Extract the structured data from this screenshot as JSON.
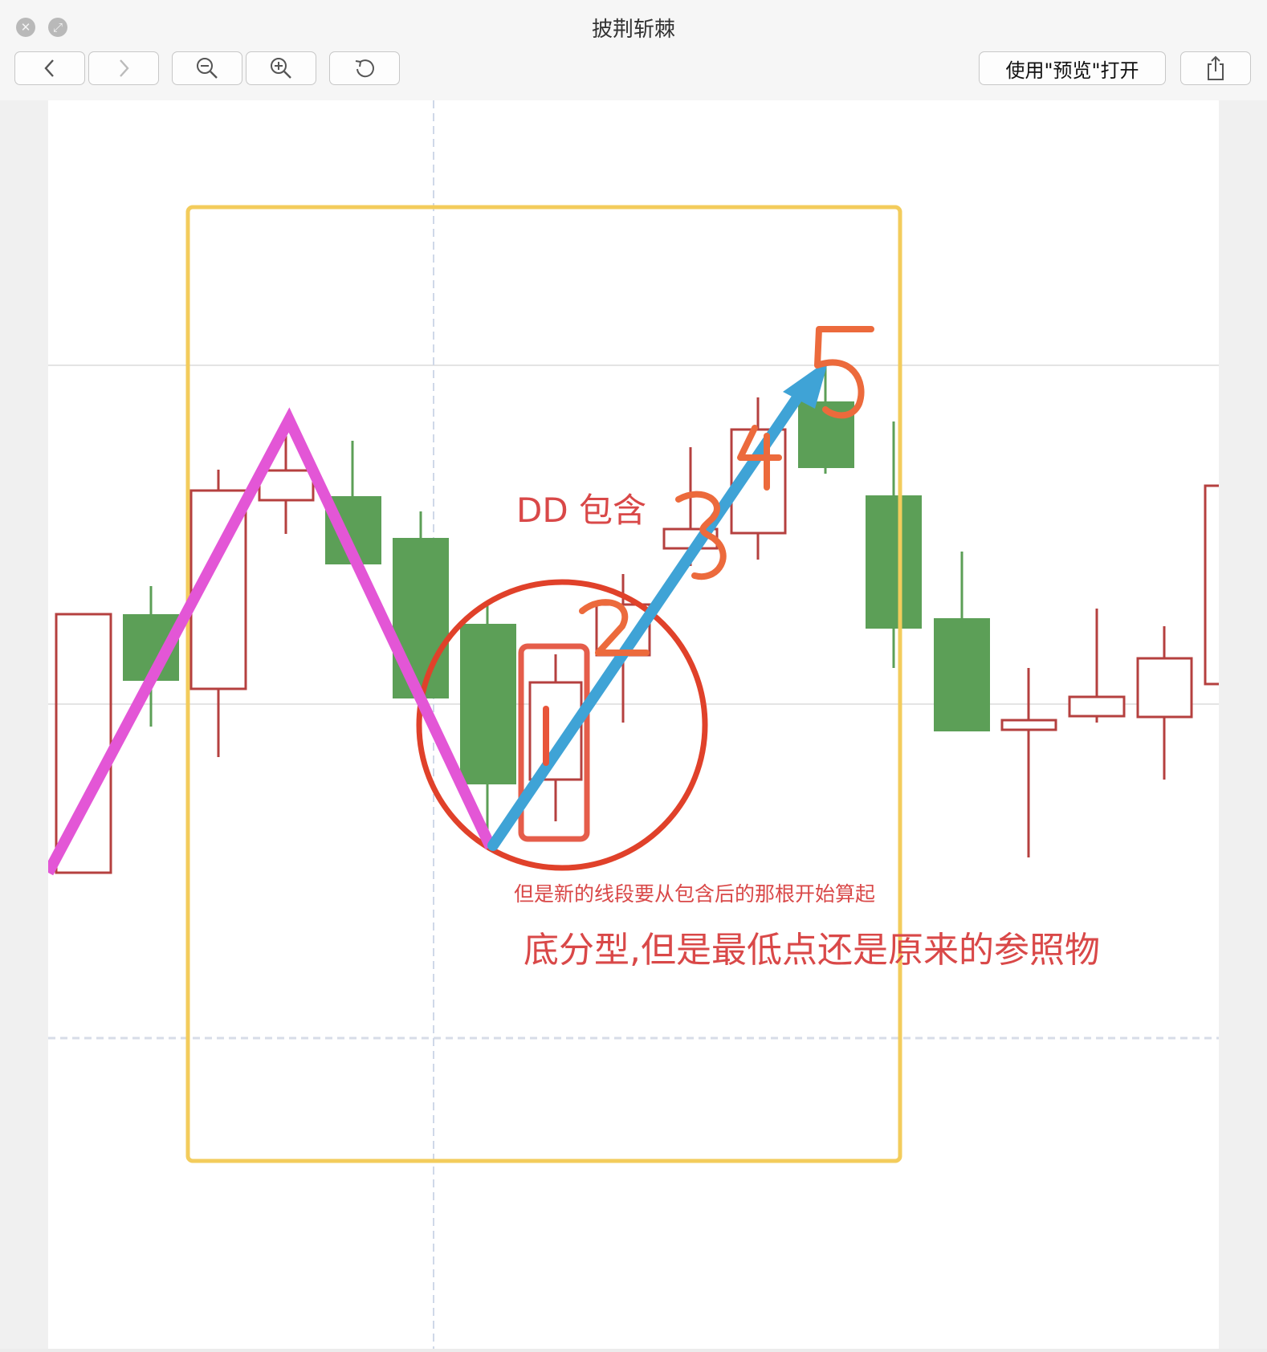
{
  "window": {
    "title": "披荆斩棘",
    "open_with_preview_label": "使用\"预览\"打开",
    "toolbar_icons": [
      "back-icon",
      "forward-icon",
      "zoom-out-icon",
      "zoom-in-icon",
      "rotate-icon",
      "share-icon"
    ]
  },
  "annotations": {
    "dd_label": "DD 包含",
    "note_small": "但是新的线段要从包含后的那根开始算起",
    "note_large": "底分型,但是最低点还是原来的参照物",
    "handwritten_numbers": [
      "1",
      "2",
      "3",
      "4",
      "5"
    ]
  },
  "colors": {
    "up_candle": "#b5403f",
    "down_candle": "#5c9f57",
    "pink_line": "#e356d6",
    "blue_arrow": "#3fa3d6",
    "circle": "#e0412a",
    "yellow_box": "#f3cc5c",
    "handwriting": "#ec6a3c",
    "text_red": "#d94848"
  }
}
